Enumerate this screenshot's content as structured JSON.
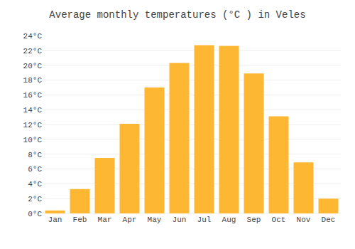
{
  "chart_data": {
    "type": "bar",
    "title": "Average monthly temperatures (°C ) in Veles",
    "categories": [
      "Jan",
      "Feb",
      "Mar",
      "Apr",
      "May",
      "Jun",
      "Jul",
      "Aug",
      "Sep",
      "Oct",
      "Nov",
      "Dec"
    ],
    "values": [
      0.4,
      3.3,
      7.5,
      12.1,
      17.0,
      20.3,
      22.7,
      22.6,
      18.9,
      13.1,
      6.9,
      2.0
    ],
    "color": "#FDB733",
    "ylim": [
      0,
      24
    ],
    "yticks": [
      {
        "value": 0,
        "label": "0°C"
      },
      {
        "value": 2,
        "label": "2°C"
      },
      {
        "value": 4,
        "label": "4°C"
      },
      {
        "value": 6,
        "label": "6°C"
      },
      {
        "value": 8,
        "label": "8°C"
      },
      {
        "value": 10,
        "label": "10°C"
      },
      {
        "value": 12,
        "label": "12°C"
      },
      {
        "value": 14,
        "label": "14°C"
      },
      {
        "value": 16,
        "label": "16°C"
      },
      {
        "value": 18,
        "label": "18°C"
      },
      {
        "value": 20,
        "label": "20°C"
      },
      {
        "value": 22,
        "label": "22°C"
      },
      {
        "value": 24,
        "label": "24°C"
      }
    ],
    "grid": true
  }
}
